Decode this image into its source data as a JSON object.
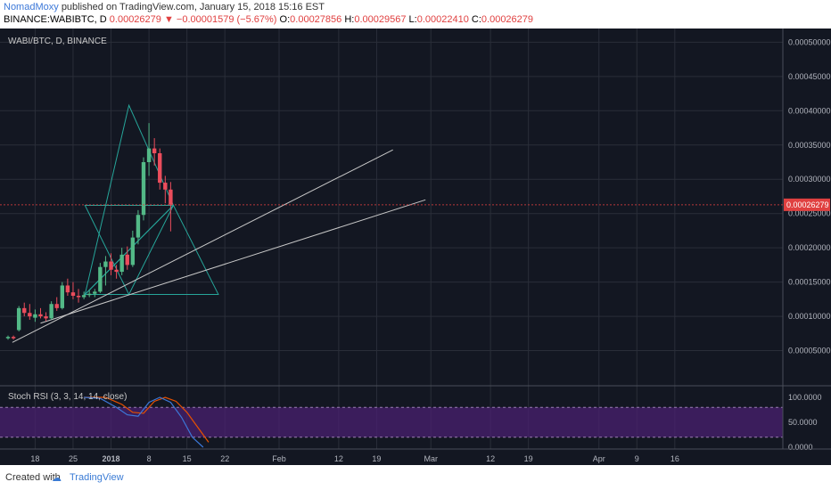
{
  "header": {
    "author": "NomadMoxy",
    "published": "published on TradingView.com, January 15, 2018 15:16 EST",
    "symbol": "BINANCE:WABIBTC, D",
    "last": "0.00026279",
    "change": "−0.00001579 (−5.67%)",
    "o_label": "O:",
    "o_val": "0.00027856",
    "h_label": "H:",
    "h_val": "0.00029567",
    "l_label": "L:",
    "l_val": "0.00022410",
    "c_label": "C:",
    "c_val": "0.00026279",
    "down_arrow": "▼"
  },
  "legend": "WABI/BTC, D, BINANCE",
  "stoch_legend": "Stoch RSI (3, 3, 14, 14, close)",
  "footer": {
    "created": "Created with",
    "brand": "TradingView",
    "icon": "tradingview-cloud-icon"
  },
  "colors": {
    "bg": "#131722",
    "grid": "#2a2e39",
    "up": "#53b987",
    "down": "#eb4d5c",
    "pattern": "#26a69a",
    "trend": "#c8c8c8",
    "k": "#3c78d8",
    "d": "#e65100",
    "rsi_band": "#4a2070",
    "price_line": "#e04040"
  },
  "chart_data": {
    "type": "candlestick",
    "price_axis": {
      "ylim": [
        0.0,
        0.00052
      ],
      "ticks": [
        "0.00005000",
        "0.00010000",
        "0.00015000",
        "0.00020000",
        "0.00025000",
        "0.00030000",
        "0.00035000",
        "0.00040000",
        "0.00045000",
        "0.00050000"
      ],
      "tick_values": [
        5e-05,
        0.0001,
        0.00015,
        0.0002,
        0.00025,
        0.0003,
        0.00035,
        0.0004,
        0.00045,
        0.0005
      ],
      "last_price_label": "0.00026279",
      "last_price": 0.00026279
    },
    "time_axis": {
      "labels": [
        "18",
        "25",
        "2018",
        "8",
        "15",
        "22",
        "Feb",
        "12",
        "19",
        "Mar",
        "12",
        "19",
        "Apr",
        "9",
        "16"
      ],
      "label_days": [
        5,
        12,
        19,
        26,
        33,
        40,
        50,
        61,
        68,
        78,
        89,
        96,
        109,
        116,
        123
      ]
    },
    "candles": [
      {
        "d": 0,
        "o": 6.8e-05,
        "h": 7.2e-05,
        "l": 6.6e-05,
        "c": 7e-05
      },
      {
        "d": 1,
        "o": 7e-05,
        "h": 7.2e-05,
        "l": 6.6e-05,
        "c": 6.8e-05
      },
      {
        "d": 2,
        "o": 8e-05,
        "h": 0.000115,
        "l": 7.8e-05,
        "c": 0.000112
      },
      {
        "d": 3,
        "o": 0.000112,
        "h": 0.00012,
        "l": 0.0001,
        "c": 0.000105
      },
      {
        "d": 4,
        "o": 0.000105,
        "h": 0.000118,
        "l": 9.5e-05,
        "c": 0.0001
      },
      {
        "d": 5,
        "o": 9.8e-05,
        "h": 0.00011,
        "l": 9.2e-05,
        "c": 0.000103
      },
      {
        "d": 6,
        "o": 0.000103,
        "h": 0.000112,
        "l": 9.7e-05,
        "c": 0.0001
      },
      {
        "d": 7,
        "o": 0.0001,
        "h": 0.000106,
        "l": 9.3e-05,
        "c": 9.7e-05
      },
      {
        "d": 8,
        "o": 9.7e-05,
        "h": 0.000122,
        "l": 9.5e-05,
        "c": 0.000118
      },
      {
        "d": 9,
        "o": 0.000118,
        "h": 0.000128,
        "l": 0.000108,
        "c": 0.000112
      },
      {
        "d": 10,
        "o": 0.000112,
        "h": 0.00015,
        "l": 0.00011,
        "c": 0.000145
      },
      {
        "d": 11,
        "o": 0.000145,
        "h": 0.000155,
        "l": 0.00013,
        "c": 0.000135
      },
      {
        "d": 12,
        "o": 0.000135,
        "h": 0.00015,
        "l": 0.000125,
        "c": 0.00013
      },
      {
        "d": 13,
        "o": 0.00013,
        "h": 0.00014,
        "l": 0.00012,
        "c": 0.000128
      },
      {
        "d": 14,
        "o": 0.000128,
        "h": 0.000136,
        "l": 0.000125,
        "c": 0.000131
      },
      {
        "d": 15,
        "o": 0.000131,
        "h": 0.000138,
        "l": 0.000128,
        "c": 0.000133
      },
      {
        "d": 16,
        "o": 0.000133,
        "h": 0.00014,
        "l": 0.000128,
        "c": 0.000136
      },
      {
        "d": 17,
        "o": 0.000136,
        "h": 0.000178,
        "l": 0.000134,
        "c": 0.000172
      },
      {
        "d": 18,
        "o": 0.000172,
        "h": 0.000188,
        "l": 0.000145,
        "c": 0.00018
      },
      {
        "d": 19,
        "o": 0.00018,
        "h": 0.000192,
        "l": 0.00016,
        "c": 0.000168
      },
      {
        "d": 20,
        "o": 0.000168,
        "h": 0.000175,
        "l": 0.000155,
        "c": 0.000165
      },
      {
        "d": 21,
        "o": 0.000165,
        "h": 0.0002,
        "l": 0.00016,
        "c": 0.00019
      },
      {
        "d": 22,
        "o": 0.00019,
        "h": 0.000202,
        "l": 0.000168,
        "c": 0.000175
      },
      {
        "d": 23,
        "o": 0.000175,
        "h": 0.000225,
        "l": 0.000172,
        "c": 0.000215
      },
      {
        "d": 24,
        "o": 0.000215,
        "h": 0.000255,
        "l": 0.000205,
        "c": 0.000248
      },
      {
        "d": 25,
        "o": 0.000248,
        "h": 0.000332,
        "l": 0.00024,
        "c": 0.000325
      },
      {
        "d": 26,
        "o": 0.000325,
        "h": 0.000382,
        "l": 0.000305,
        "c": 0.000345
      },
      {
        "d": 27,
        "o": 0.000345,
        "h": 0.00036,
        "l": 0.00032,
        "c": 0.000338
      },
      {
        "d": 28,
        "o": 0.000338,
        "h": 0.000345,
        "l": 0.000285,
        "c": 0.000295
      },
      {
        "d": 29,
        "o": 0.000295,
        "h": 0.000305,
        "l": 0.000265,
        "c": 0.000285
      },
      {
        "d": 30,
        "o": 0.000285,
        "h": 0.000296,
        "l": 0.000224,
        "c": 0.000263
      }
    ],
    "stoch_rsi": {
      "ylim": [
        0,
        100
      ],
      "ticks": [
        "100.0000",
        "50.0000",
        "0.0000"
      ],
      "tick_values": [
        100,
        50,
        0
      ],
      "band": [
        20,
        80
      ],
      "k": [
        [
          14,
          100
        ],
        [
          17,
          98
        ],
        [
          20,
          80
        ],
        [
          22,
          65
        ],
        [
          24,
          62
        ],
        [
          26,
          90
        ],
        [
          28,
          100
        ],
        [
          30,
          90
        ],
        [
          32,
          60
        ],
        [
          34,
          20
        ],
        [
          36,
          0
        ]
      ],
      "d": [
        [
          14,
          100
        ],
        [
          18,
          100
        ],
        [
          21,
          86
        ],
        [
          23,
          70
        ],
        [
          25,
          68
        ],
        [
          27,
          92
        ],
        [
          29,
          100
        ],
        [
          31,
          92
        ],
        [
          33,
          70
        ],
        [
          35,
          40
        ],
        [
          37,
          10
        ]
      ]
    }
  }
}
